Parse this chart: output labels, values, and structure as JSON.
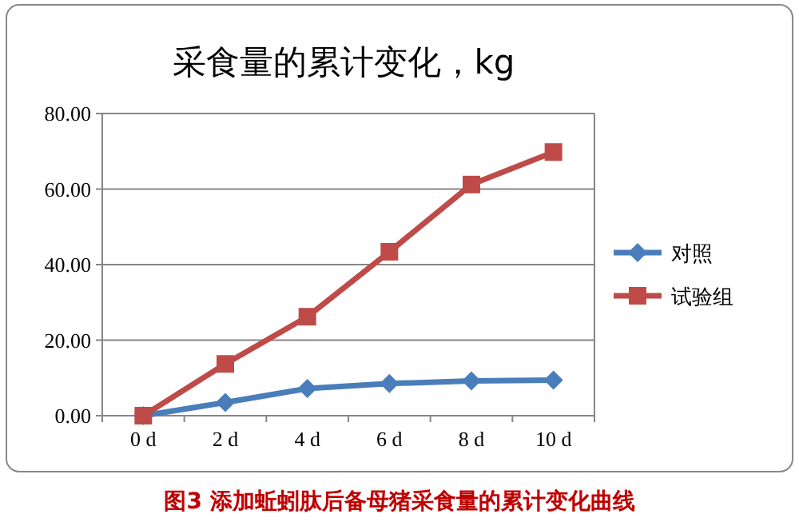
{
  "chart_data": {
    "type": "line",
    "title": "采食量的累计变化，kg",
    "categories": [
      "0 d",
      "2 d",
      "4 d",
      "6 d",
      "8 d",
      "10 d"
    ],
    "series": [
      {
        "name": "对照",
        "color": "#4a7ebb",
        "marker": "diamond",
        "values": [
          0,
          3.5,
          7.2,
          8.5,
          9.2,
          9.4
        ]
      },
      {
        "name": "试验组",
        "color": "#be4b48",
        "marker": "square",
        "values": [
          0,
          13.7,
          26.2,
          43.4,
          61.2,
          69.8
        ]
      }
    ],
    "ylim": [
      0,
      80
    ],
    "yticks": [
      {
        "value": 0,
        "label": "0.00"
      },
      {
        "value": 20,
        "label": "20.00"
      },
      {
        "value": 40,
        "label": "40.00"
      },
      {
        "value": 60,
        "label": "60.00"
      },
      {
        "value": 80,
        "label": "80.00"
      }
    ],
    "grid": "y",
    "legend": "right",
    "line_style": "solid",
    "annotations": [
      "图3 添加蚯蚓肽后备母猪采食量的累计变化曲线"
    ]
  }
}
